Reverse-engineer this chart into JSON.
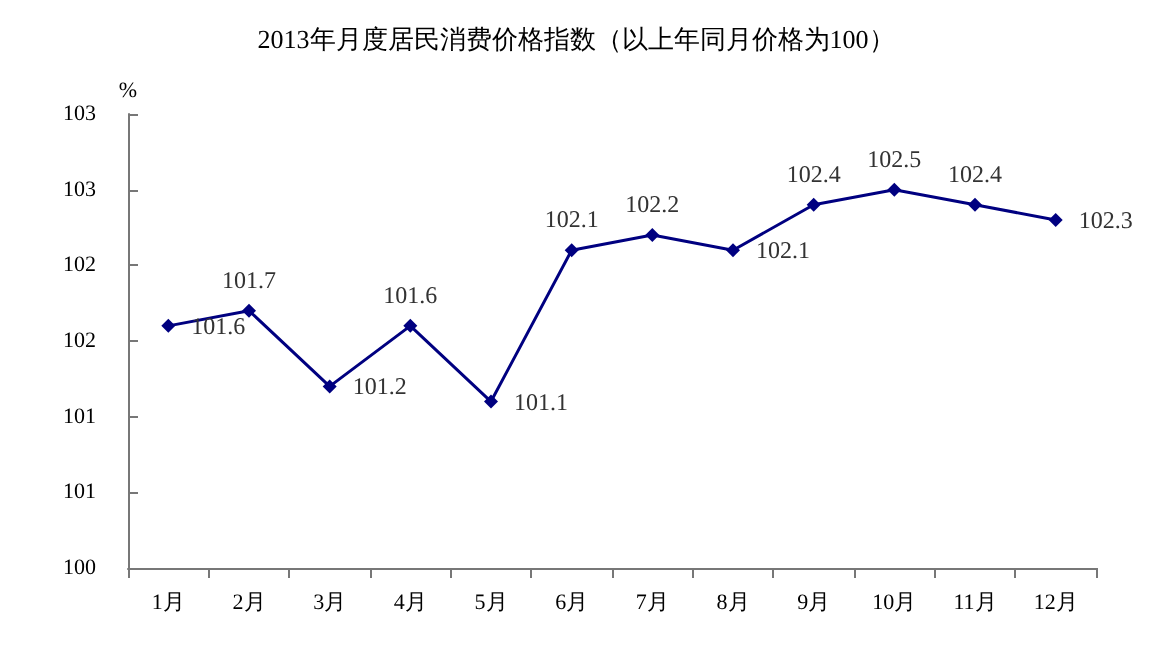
{
  "chart_data": {
    "type": "line",
    "title": "2013年月度居民消费价格指数（以上年同月价格为100）",
    "ylabel": "%",
    "categories": [
      "1月",
      "2月",
      "3月",
      "4月",
      "5月",
      "6月",
      "7月",
      "8月",
      "9月",
      "10月",
      "11月",
      "12月"
    ],
    "values": [
      101.6,
      101.7,
      101.2,
      101.6,
      101.1,
      102.1,
      102.2,
      102.1,
      102.4,
      102.5,
      102.4,
      102.3
    ],
    "color": "#000080",
    "ylim": [
      100,
      103
    ],
    "yticks": [
      {
        "value": 100,
        "label": "100"
      },
      {
        "value": 100.5,
        "label": "101"
      },
      {
        "value": 101,
        "label": "101"
      },
      {
        "value": 101.5,
        "label": "102"
      },
      {
        "value": 102,
        "label": "102"
      },
      {
        "value": 102.5,
        "label": "103"
      },
      {
        "value": 103,
        "label": "103"
      }
    ],
    "data_labels": true,
    "grid": false,
    "marker": "diamond",
    "line_style": "solid"
  }
}
